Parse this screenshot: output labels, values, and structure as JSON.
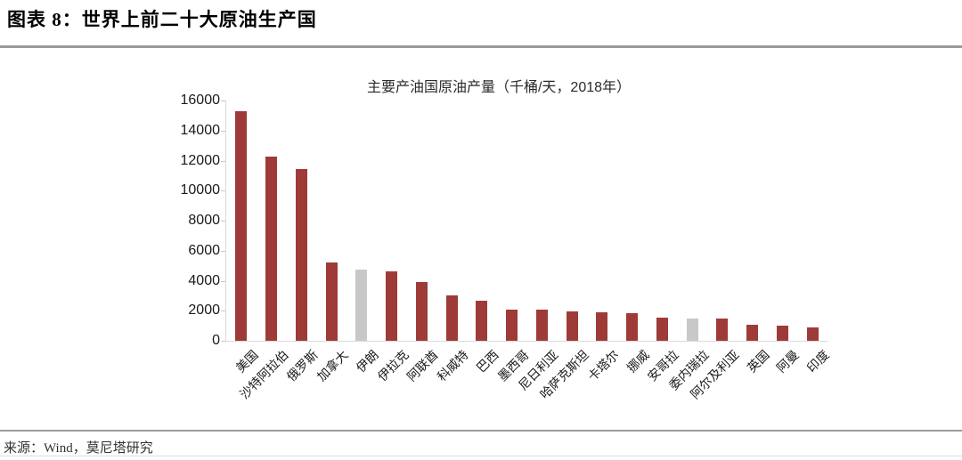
{
  "header": {
    "title": "图表 8：世界上前二十大原油生产国"
  },
  "chart_data": {
    "type": "bar",
    "title": "主要产油国原油产量（千桶/天，2018年）",
    "categories": [
      "美国",
      "沙特阿拉伯",
      "俄罗斯",
      "加拿大",
      "伊朗",
      "伊拉克",
      "阿联酋",
      "科威特",
      "巴西",
      "墨西哥",
      "尼日利亚",
      "哈萨克斯坦",
      "卡塔尔",
      "挪威",
      "安哥拉",
      "委内瑞拉",
      "阿尔及利亚",
      "英国",
      "阿曼",
      "印度"
    ],
    "values": [
      15310,
      12290,
      11440,
      5210,
      4720,
      4610,
      3940,
      3050,
      2680,
      2070,
      2050,
      1930,
      1880,
      1840,
      1530,
      1510,
      1500,
      1090,
      980,
      870
    ],
    "muted_indices": [
      4,
      15
    ],
    "colors": {
      "bar": "#9e3b38",
      "muted_bar": "#c8c8c8",
      "axis": "#d9d9d9"
    },
    "xlabel": "",
    "ylabel": "",
    "ylim": [
      0,
      16000
    ],
    "yticks": [
      0,
      2000,
      4000,
      6000,
      8000,
      10000,
      12000,
      14000,
      16000
    ],
    "grid": "off",
    "legend": "none"
  },
  "footer": {
    "source": "来源：Wind，莫尼塔研究"
  }
}
